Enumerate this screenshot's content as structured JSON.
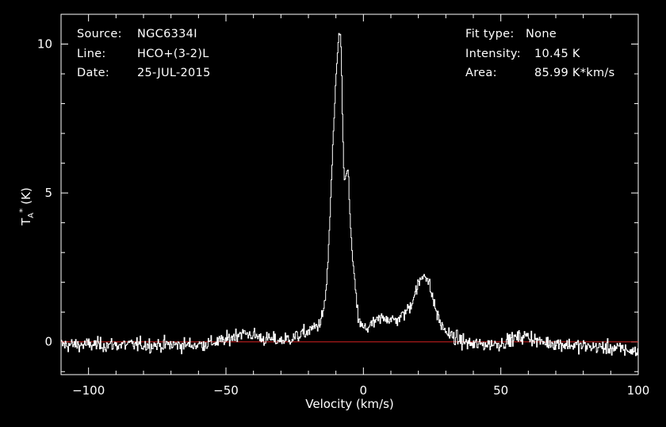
{
  "chart_data": {
    "type": "line",
    "title": "",
    "info": {
      "source_label": "Source:",
      "source": "NGC6334I",
      "line_label": "Line:",
      "line": "HCO+(3-2)L",
      "date_label": "Date:",
      "date": "25-JUL-2015",
      "fit_label": "Fit type:",
      "fit": "None",
      "intensity_label": "Intensity:",
      "intensity": "10.45 K",
      "area_label": "Area:",
      "area": "85.99 K*km/s"
    },
    "xlabel": "Velocity (km/s)",
    "ylabel_main": "T",
    "ylabel_sub": "A",
    "ylabel_sup": "*",
    "ylabel_unit": " (K)",
    "xlim": [
      -110,
      100
    ],
    "ylim": [
      -1.1,
      11
    ],
    "xticks": [
      -100,
      -50,
      0,
      50,
      100
    ],
    "yticks": [
      0,
      5,
      10
    ],
    "xtick_labels": [
      "−100",
      "−50",
      "0",
      "50",
      "100"
    ],
    "ytick_labels": [
      "0",
      "5",
      "10"
    ],
    "baseline": 0,
    "baseline_color": "#d42020",
    "line_color": "#ffffff",
    "noise_rms": 0.2,
    "series": [
      {
        "name": "",
        "x": [
          -110,
          -60,
          -50,
          -45,
          -41,
          -36,
          -30,
          -25,
          -20,
          -16,
          -14,
          -13,
          -12,
          -11,
          -10,
          -9,
          -8.5,
          -8,
          -7.5,
          -7,
          -6.5,
          -6,
          -5.5,
          -5,
          -4.5,
          -4,
          -3,
          -2,
          -1,
          0,
          2,
          5,
          8,
          11,
          14,
          17,
          19,
          21,
          22.5,
          24,
          26,
          28,
          31,
          35,
          40,
          50,
          56,
          60,
          64,
          70,
          80,
          90,
          95,
          100
        ],
        "y": [
          -0.1,
          -0.1,
          0.05,
          0.3,
          0.25,
          0.1,
          0.05,
          0.15,
          0.35,
          0.6,
          1.2,
          2.5,
          4.5,
          6.8,
          8.8,
          10.2,
          10.45,
          9.5,
          7.0,
          5.5,
          5.4,
          5.9,
          5.7,
          4.5,
          3.6,
          2.9,
          1.8,
          0.9,
          0.55,
          0.45,
          0.5,
          0.7,
          0.85,
          0.7,
          0.85,
          1.2,
          1.7,
          2.1,
          2.35,
          1.9,
          1.2,
          0.6,
          0.25,
          0.05,
          -0.1,
          -0.05,
          0.15,
          0.2,
          0.0,
          -0.05,
          -0.15,
          -0.2,
          -0.25,
          -0.35
        ]
      }
    ],
    "grid": false,
    "legend": "none"
  }
}
